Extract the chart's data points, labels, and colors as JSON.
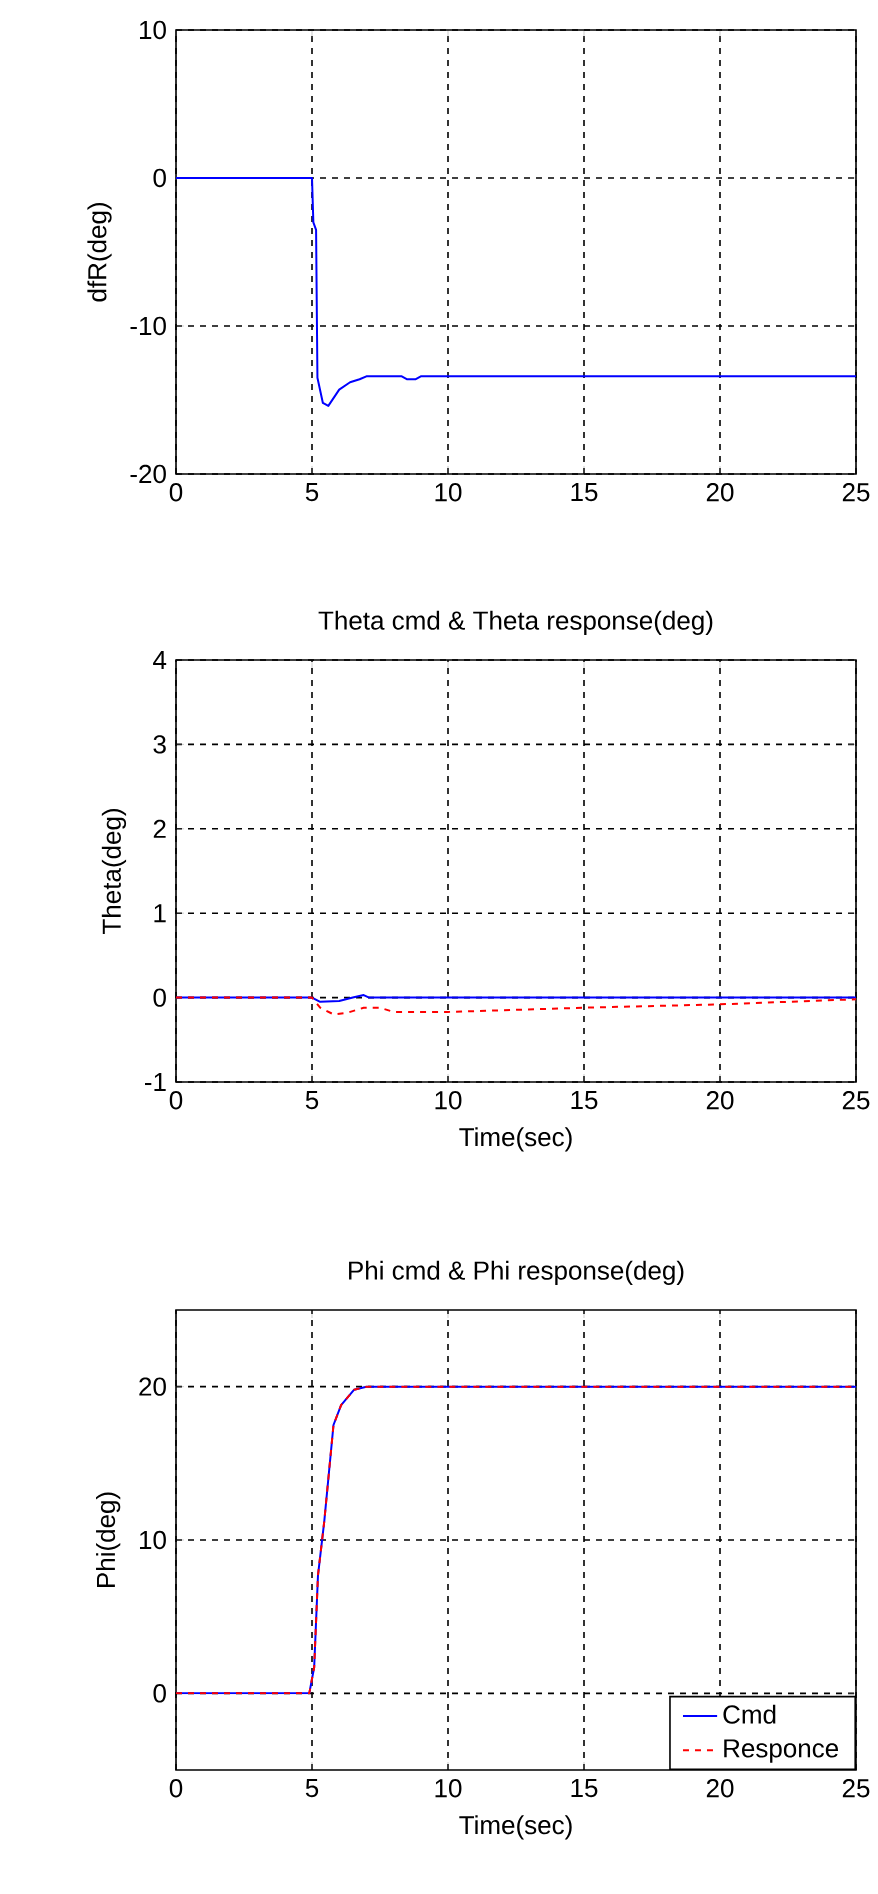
{
  "chart_data": [
    {
      "type": "line",
      "ylabel": "dfR(deg)",
      "xlim": [
        0,
        25
      ],
      "ylim": [
        -20,
        10
      ],
      "xticks": [
        0,
        5,
        10,
        15,
        20,
        25
      ],
      "yticks": [
        -20,
        -10,
        0,
        10
      ],
      "grid": true,
      "series": [
        {
          "color": "#0000ff",
          "line_style": "solid",
          "x": [
            0,
            5.0,
            5.05,
            5.15,
            5.2,
            5.4,
            5.6,
            6.0,
            6.4,
            6.75,
            7.0,
            8.3,
            8.5,
            8.8,
            9.0,
            25
          ],
          "values": [
            0,
            0,
            -3,
            -3.5,
            -13.5,
            -15.2,
            -15.4,
            -14.3,
            -13.8,
            -13.6,
            -13.4,
            -13.4,
            -13.6,
            -13.6,
            -13.4,
            -13.4
          ]
        }
      ]
    },
    {
      "type": "line",
      "title": "Theta cmd & Theta response(deg)",
      "xlabel": "Time(sec)",
      "ylabel": "Theta(deg)",
      "xlim": [
        0,
        25
      ],
      "ylim": [
        -1,
        4
      ],
      "xticks": [
        0,
        5,
        10,
        15,
        20,
        25
      ],
      "yticks": [
        -1,
        0,
        1,
        2,
        3,
        4
      ],
      "grid": true,
      "series": [
        {
          "color": "#0000ff",
          "line_style": "solid",
          "x": [
            0,
            5.0,
            5.3,
            6.0,
            6.5,
            6.9,
            7.1,
            25
          ],
          "values": [
            0,
            0,
            -0.05,
            -0.04,
            0,
            0.03,
            0,
            0
          ]
        },
        {
          "color": "#ff0000",
          "line_style": "dashed",
          "x": [
            0,
            5.0,
            5.3,
            5.8,
            6.3,
            6.9,
            7.5,
            8.0,
            10,
            15,
            20,
            25
          ],
          "values": [
            0,
            0,
            -0.12,
            -0.2,
            -0.18,
            -0.12,
            -0.12,
            -0.17,
            -0.17,
            -0.12,
            -0.08,
            -0.02
          ]
        }
      ]
    },
    {
      "type": "line",
      "title": "Phi cmd & Phi response(deg)",
      "xlabel": "Time(sec)",
      "ylabel": "Phi(deg)",
      "xlim": [
        0,
        25
      ],
      "ylim": [
        -5,
        25
      ],
      "xticks": [
        0,
        5,
        10,
        15,
        20,
        25
      ],
      "yticks": [
        0,
        10,
        20
      ],
      "grid": true,
      "legend": "bottom right",
      "series": [
        {
          "name": "Cmd",
          "color": "#0000ff",
          "line_style": "solid",
          "x": [
            0,
            4.9,
            5.08,
            5.22,
            5.45,
            5.79,
            6.07,
            6.55,
            7.0,
            25
          ],
          "values": [
            0,
            0,
            1.7,
            7.7,
            11.2,
            17.5,
            18.8,
            19.8,
            20,
            20
          ]
        },
        {
          "name": "Responce",
          "color": "#ff0000",
          "line_style": "dashed",
          "x": [
            0,
            4.9,
            5.08,
            5.22,
            5.45,
            5.79,
            6.07,
            6.55,
            7.0,
            25
          ],
          "values": [
            0,
            0,
            1.7,
            7.7,
            11.2,
            17.5,
            18.8,
            19.8,
            20,
            20
          ]
        }
      ]
    }
  ]
}
